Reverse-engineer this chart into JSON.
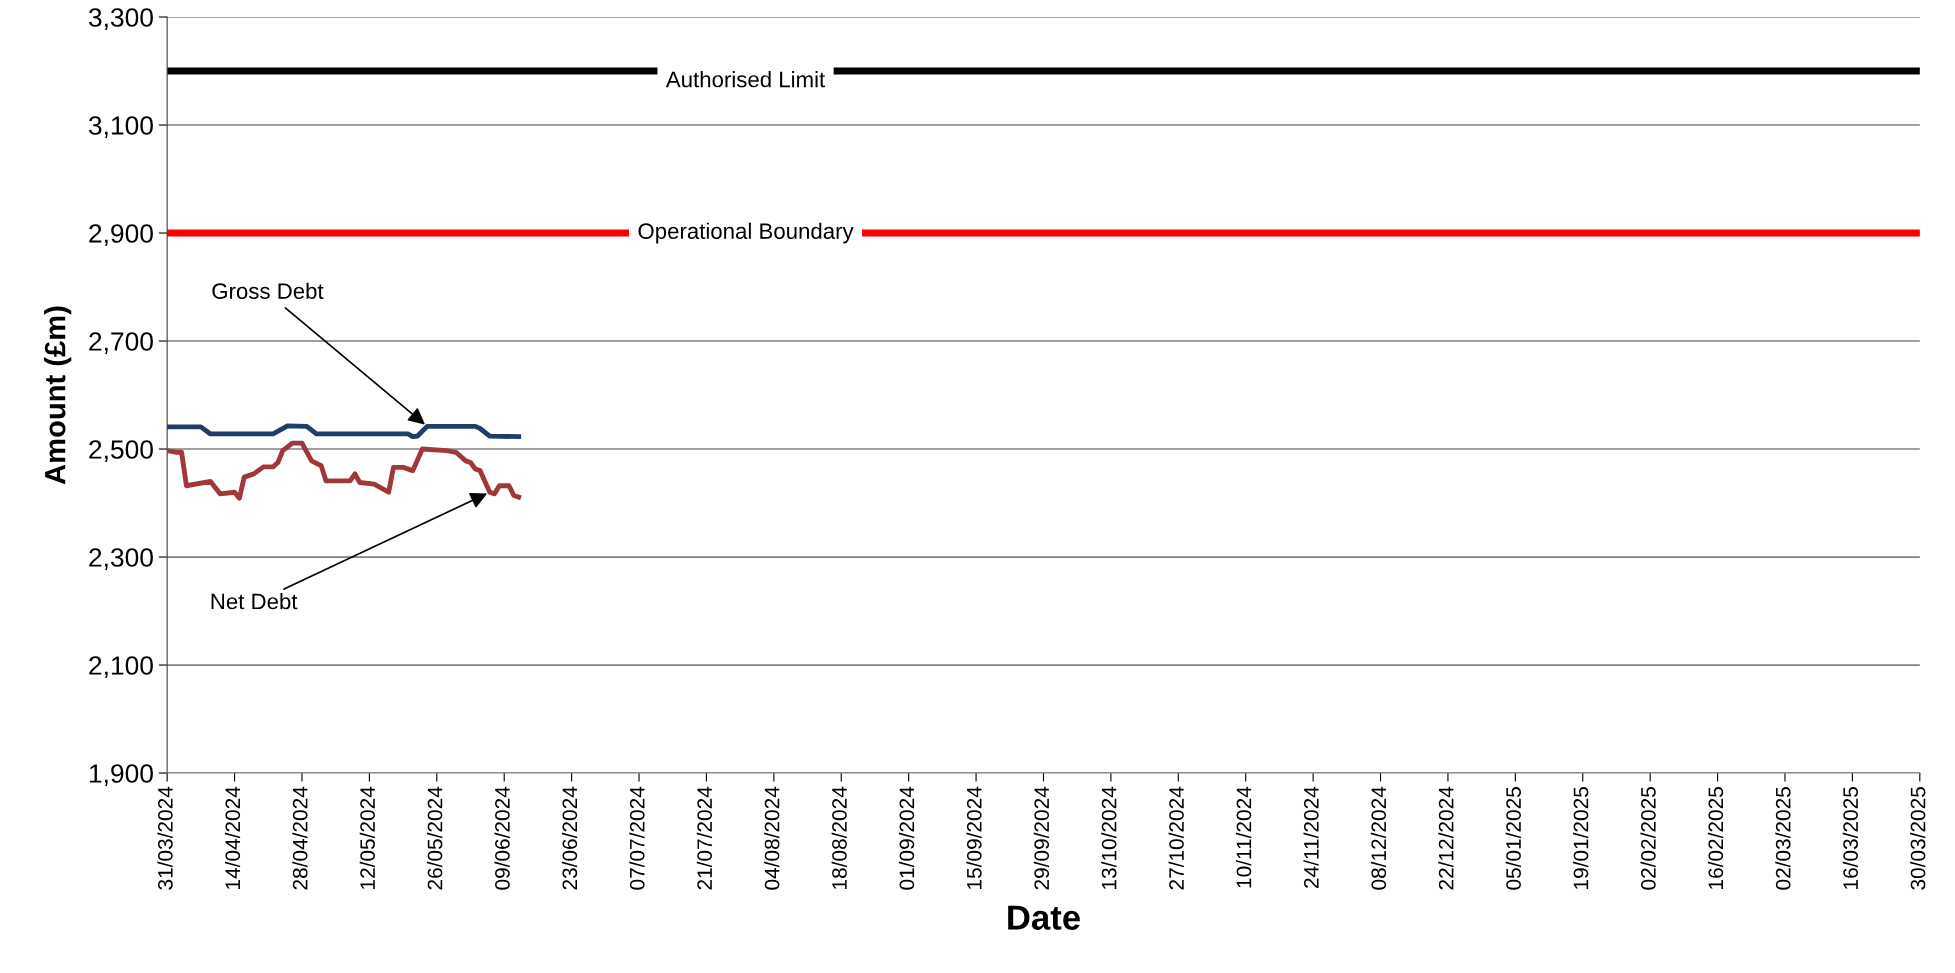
{
  "chart_data": {
    "type": "line",
    "xlabel": "Date",
    "ylabel": "Amount (£m)",
    "series": [
      {
        "name": "Gross Debt",
        "color": "#1f3d6b",
        "x": [
          "2024-03-31",
          "2024-04-07",
          "2024-04-09",
          "2024-04-22",
          "2024-04-25",
          "2024-04-29",
          "2024-05-01",
          "2024-05-20",
          "2024-05-21",
          "2024-05-22",
          "2024-05-24",
          "2024-06-03",
          "2024-06-04",
          "2024-06-06",
          "2024-06-12"
        ],
        "values": [
          2541,
          2541,
          2528,
          2528,
          2543,
          2542,
          2528,
          2528,
          2523,
          2524,
          2542,
          2542,
          2538,
          2524,
          2523
        ]
      },
      {
        "name": "Net Debt",
        "color": "#a0383a",
        "x": [
          "2024-03-31",
          "2024-04-02",
          "2024-04-03",
          "2024-04-04",
          "2024-04-09",
          "2024-04-11",
          "2024-04-14",
          "2024-04-15",
          "2024-04-16",
          "2024-04-18",
          "2024-04-20",
          "2024-04-22",
          "2024-04-23",
          "2024-04-24",
          "2024-04-26",
          "2024-04-28",
          "2024-04-30",
          "2024-05-02",
          "2024-05-03",
          "2024-05-08",
          "2024-05-09",
          "2024-05-10",
          "2024-05-13",
          "2024-05-16",
          "2024-05-17",
          "2024-05-19",
          "2024-05-21",
          "2024-05-23",
          "2024-05-28",
          "2024-05-30",
          "2024-06-01",
          "2024-06-02",
          "2024-06-03",
          "2024-06-04",
          "2024-06-06",
          "2024-06-07",
          "2024-06-08",
          "2024-06-10",
          "2024-06-11",
          "2024-06-12"
        ],
        "values": [
          2497,
          2494,
          2494,
          2432,
          2440,
          2417,
          2420,
          2409,
          2448,
          2454,
          2467,
          2467,
          2475,
          2497,
          2511,
          2511,
          2478,
          2469,
          2441,
          2441,
          2454,
          2438,
          2435,
          2420,
          2466,
          2466,
          2460,
          2500,
          2497,
          2494,
          2478,
          2475,
          2463,
          2460,
          2420,
          2417,
          2432,
          2432,
          2414,
          2411
        ]
      }
    ],
    "ref_lines": [
      {
        "axis": "y",
        "value": 3200,
        "label": "Authorised Limit",
        "color": "#000000"
      },
      {
        "axis": "y",
        "value": 2900,
        "label": "Operational Boundary",
        "color": "#ff0000"
      }
    ],
    "ylim": [
      1900,
      3300
    ],
    "yticks": [
      {
        "value": 1900,
        "label": "1,900"
      },
      {
        "value": 2100,
        "label": "2,100"
      },
      {
        "value": 2300,
        "label": "2,300"
      },
      {
        "value": 2500,
        "label": "2,500"
      },
      {
        "value": 2700,
        "label": "2,700"
      },
      {
        "value": 2900,
        "label": "2,900"
      },
      {
        "value": 3100,
        "label": "3,100"
      },
      {
        "value": 3300,
        "label": "3,300"
      }
    ],
    "xlim": [
      "2024-03-31",
      "2025-03-30"
    ],
    "xticks": [
      {
        "value": "2024-03-31",
        "label": "31/03/2024"
      },
      {
        "value": "2024-04-14",
        "label": "14/04/2024"
      },
      {
        "value": "2024-04-28",
        "label": "28/04/2024"
      },
      {
        "value": "2024-05-12",
        "label": "12/05/2024"
      },
      {
        "value": "2024-05-26",
        "label": "26/05/2024"
      },
      {
        "value": "2024-06-09",
        "label": "09/06/2024"
      },
      {
        "value": "2024-06-23",
        "label": "23/06/2024"
      },
      {
        "value": "2024-07-07",
        "label": "07/07/2024"
      },
      {
        "value": "2024-07-21",
        "label": "21/07/2024"
      },
      {
        "value": "2024-08-04",
        "label": "04/08/2024"
      },
      {
        "value": "2024-08-18",
        "label": "18/08/2024"
      },
      {
        "value": "2024-09-01",
        "label": "01/09/2024"
      },
      {
        "value": "2024-09-15",
        "label": "15/09/2024"
      },
      {
        "value": "2024-09-29",
        "label": "29/09/2024"
      },
      {
        "value": "2024-10-13",
        "label": "13/10/2024"
      },
      {
        "value": "2024-10-27",
        "label": "27/10/2024"
      },
      {
        "value": "2024-11-10",
        "label": "10/11/2024"
      },
      {
        "value": "2024-11-24",
        "label": "24/11/2024"
      },
      {
        "value": "2024-12-08",
        "label": "08/12/2024"
      },
      {
        "value": "2024-12-22",
        "label": "22/12/2024"
      },
      {
        "value": "2025-01-05",
        "label": "05/01/2025"
      },
      {
        "value": "2025-01-19",
        "label": "19/01/2025"
      },
      {
        "value": "2025-02-02",
        "label": "02/02/2025"
      },
      {
        "value": "2025-02-16",
        "label": "16/02/2025"
      },
      {
        "value": "2025-03-02",
        "label": "02/03/2025"
      },
      {
        "value": "2025-03-16",
        "label": "16/03/2025"
      },
      {
        "value": "2025-03-30",
        "label": "30/03/2025"
      }
    ],
    "grid": "y",
    "legend": false,
    "marker": "none",
    "line_style": "solid"
  }
}
